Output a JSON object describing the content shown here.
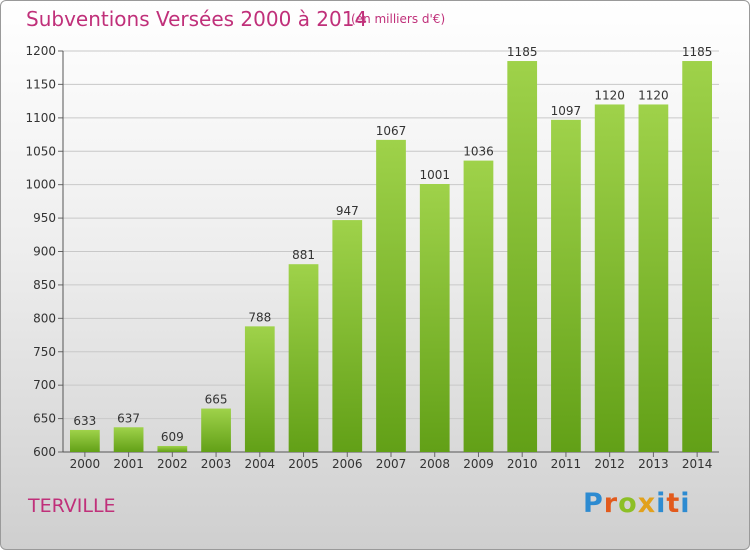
{
  "title": "Subventions Versées 2000 à 2014",
  "subtitle": "(en milliers d'€)",
  "commune": "TERVILLE",
  "logo": {
    "letters": [
      "P",
      "r",
      "o",
      "x",
      "i",
      "t",
      "i"
    ],
    "colors": [
      "#2d8bd1",
      "#e25a1c",
      "#8cbf26",
      "#e2a11c",
      "#2d8bd1",
      "#e25a1c",
      "#2d8bd1"
    ]
  },
  "colors": {
    "bar_top": "#9fd24a",
    "bar_bottom": "#62a017",
    "text": "#c0307a",
    "grid": "#c8c8c8"
  },
  "chart_data": {
    "type": "bar",
    "categories": [
      "2000",
      "2001",
      "2002",
      "2003",
      "2004",
      "2005",
      "2006",
      "2007",
      "2008",
      "2009",
      "2010",
      "2011",
      "2012",
      "2013",
      "2014"
    ],
    "values": [
      633,
      637,
      609,
      665,
      788,
      881,
      947,
      1067,
      1001,
      1036,
      1185,
      1097,
      1120,
      1120,
      1185
    ],
    "ylim": [
      600,
      1200
    ],
    "yticks": [
      600,
      650,
      700,
      750,
      800,
      850,
      900,
      950,
      1000,
      1050,
      1100,
      1150,
      1200
    ],
    "grid": true,
    "data_labels": true
  }
}
